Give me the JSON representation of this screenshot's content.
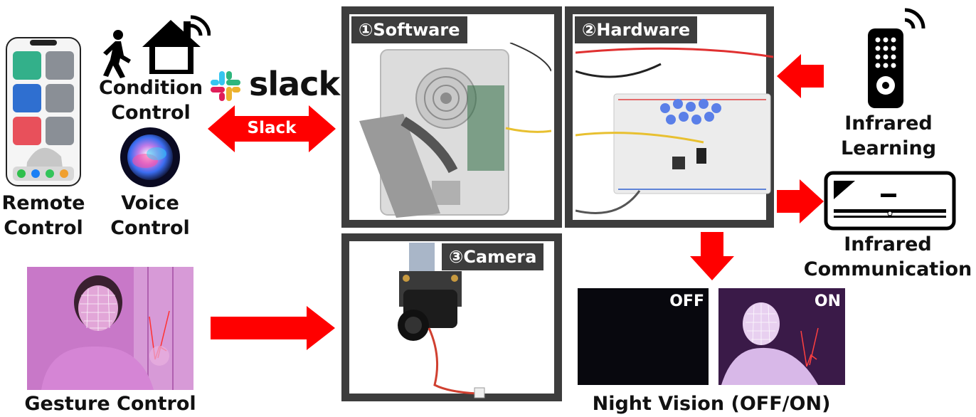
{
  "labels": {
    "condition_control": [
      "Condition",
      "Control"
    ],
    "remote_control": [
      "Remote",
      "Control"
    ],
    "voice_control": [
      "Voice",
      "Control"
    ],
    "slack_logo_text": "slack",
    "slack_arrow": "Slack",
    "gesture_control": "Gesture Control",
    "infrared_learning": [
      "Infrared",
      "Learning"
    ],
    "infrared_communication": [
      "Infrared",
      "Communication"
    ],
    "night_vision": "Night Vision (OFF/ON)"
  },
  "panels": {
    "software": "①Software",
    "hardware": "②Hardware",
    "camera": "③Camera"
  },
  "night_vision_states": {
    "off": "OFF",
    "on": "ON"
  },
  "colors": {
    "arrow": "#ff0000",
    "panel_border": "#3d3d3d",
    "gesture_bg": "#c46fc4",
    "night_on_bg": "#6a3a78"
  }
}
